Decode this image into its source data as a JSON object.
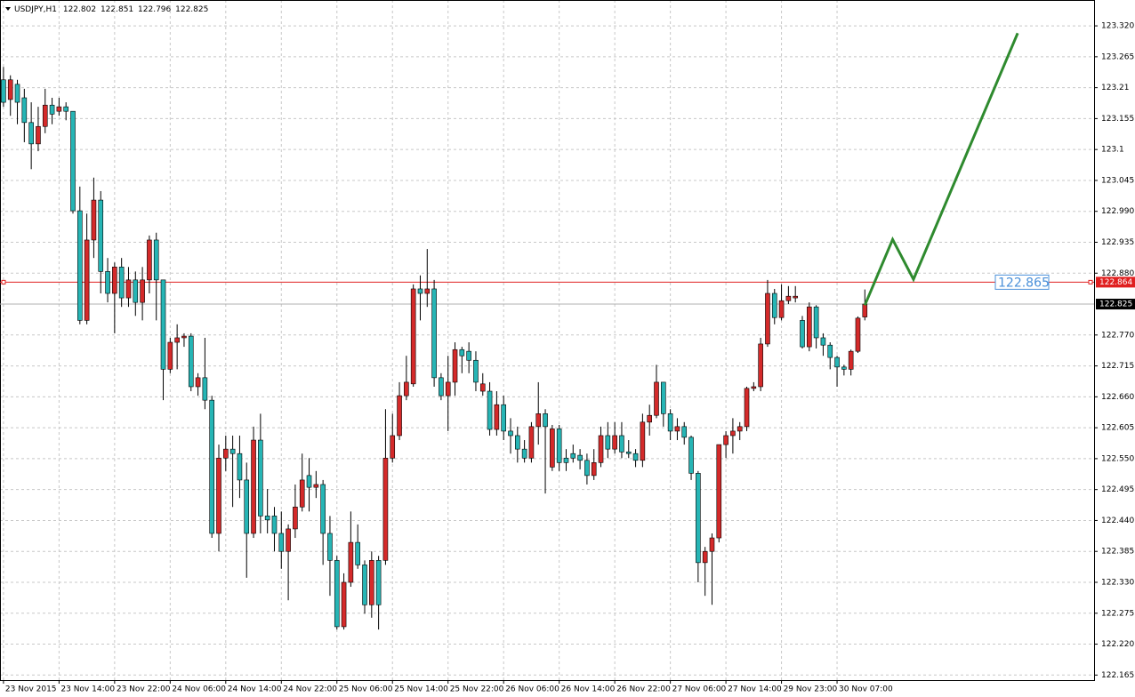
{
  "chart_data": {
    "type": "candlestick",
    "title": "USDJPY,H1",
    "up_color": "#d42a2a",
    "down_color": "#26b5b5",
    "grid": true,
    "categories": [
      "23 Nov 2015",
      null,
      null,
      null,
      null,
      null,
      null,
      null,
      "23 Nov 14:00",
      null,
      null,
      null,
      null,
      null,
      null,
      null,
      "23 Nov 22:00",
      null,
      null,
      null,
      null,
      null,
      null,
      null,
      "24 Nov 06:00",
      null,
      null,
      null,
      null,
      null,
      null,
      null,
      "24 Nov 14:00",
      null,
      null,
      null,
      null,
      null,
      null,
      null,
      "24 Nov 22:00",
      null,
      null,
      null,
      null,
      null,
      null,
      null,
      "25 Nov 06:00",
      null,
      null,
      null,
      null,
      null,
      null,
      null,
      "25 Nov 14:00",
      null,
      null,
      null,
      null,
      null,
      null,
      null,
      "25 Nov 22:00",
      null,
      null,
      null,
      null,
      null,
      null,
      null,
      "26 Nov 06:00",
      null,
      null,
      null,
      null,
      null,
      null,
      null,
      "26 Nov 14:00",
      null,
      null,
      null,
      null,
      null,
      null,
      null,
      "26 Nov 22:00",
      null,
      null,
      null,
      null,
      null,
      null,
      null,
      "27 Nov 06:00",
      null,
      null,
      null,
      null,
      null,
      null,
      null,
      "27 Nov 14:00",
      null,
      null,
      null,
      null,
      null,
      null,
      null,
      "29 Nov 23:00",
      null,
      null,
      null,
      null,
      null,
      null,
      null,
      "30 Nov 07:00",
      null,
      null,
      null,
      null
    ],
    "open": [
      123.224,
      123.189,
      123.216,
      123.192,
      123.148,
      123.11,
      123.141,
      123.179,
      123.168,
      123.176,
      123.168,
      122.991,
      122.796,
      122.939,
      123.01,
      122.883,
      122.844,
      122.891,
      122.836,
      122.868,
      122.828,
      122.868,
      122.939,
      122.868,
      122.709,
      122.757,
      122.765,
      122.768,
      122.678,
      122.694,
      122.654,
      122.417,
      122.551,
      122.567,
      122.559,
      122.512,
      122.417,
      122.583,
      122.448,
      122.448,
      122.417,
      122.385,
      122.425,
      122.464,
      122.52,
      122.499,
      122.504,
      122.417,
      122.369,
      122.251,
      122.33,
      122.401,
      122.361,
      122.29,
      122.369,
      122.369,
      122.551,
      122.591,
      122.662,
      122.683,
      122.852,
      122.844,
      122.852,
      122.694,
      122.662,
      122.686,
      122.744,
      122.741,
      122.725,
      122.67,
      122.67,
      122.602,
      122.646,
      122.599,
      122.591,
      122.567,
      122.551,
      122.607,
      122.63,
      122.535,
      122.603,
      122.551,
      122.559,
      122.556,
      122.547,
      122.52,
      122.543,
      122.591,
      122.567,
      122.591,
      122.562,
      122.559,
      122.547,
      122.615,
      122.627,
      122.686,
      122.63,
      122.599,
      122.607,
      122.588,
      122.524,
      122.365,
      122.385,
      122.409,
      122.575,
      122.591,
      122.599,
      122.607,
      122.675,
      122.678,
      122.754,
      122.844,
      122.801,
      122.831,
      122.836,
      122.796,
      122.749,
      122.82,
      122.765,
      122.752,
      122.73,
      122.713,
      122.709,
      122.741,
      122.802
    ],
    "high": [
      123.247,
      123.232,
      123.224,
      123.208,
      123.184,
      123.176,
      123.208,
      123.192,
      123.192,
      123.184,
      123.168,
      123.034,
      122.986,
      123.05,
      123.026,
      122.907,
      122.899,
      122.907,
      122.891,
      122.883,
      122.891,
      122.947,
      122.952,
      122.868,
      122.765,
      122.789,
      122.773,
      122.773,
      122.702,
      122.765,
      122.662,
      122.575,
      122.591,
      122.591,
      122.591,
      122.543,
      122.607,
      122.63,
      122.496,
      122.464,
      122.456,
      122.433,
      122.504,
      122.559,
      122.551,
      122.528,
      122.512,
      122.448,
      122.377,
      122.346,
      122.456,
      122.433,
      122.369,
      122.385,
      122.377,
      122.638,
      122.63,
      122.686,
      122.733,
      122.86,
      122.876,
      122.923,
      122.868,
      122.702,
      122.733,
      122.757,
      122.749,
      122.757,
      122.741,
      122.702,
      122.686,
      122.67,
      122.662,
      122.622,
      122.607,
      122.583,
      122.615,
      122.686,
      122.638,
      122.61,
      122.61,
      122.567,
      122.575,
      122.567,
      122.559,
      122.567,
      122.607,
      122.615,
      122.615,
      122.615,
      122.583,
      122.567,
      122.63,
      122.646,
      122.717,
      122.686,
      122.638,
      122.622,
      122.615,
      122.591,
      122.528,
      122.393,
      122.417,
      122.575,
      122.599,
      122.622,
      122.615,
      122.678,
      122.686,
      122.765,
      122.868,
      122.852,
      122.86,
      122.857,
      122.857,
      122.804,
      122.828,
      122.823,
      122.773,
      122.757,
      122.733,
      122.717,
      122.744,
      122.803,
      122.851
    ],
    "low": [
      123.176,
      123.16,
      123.145,
      123.113,
      123.065,
      123.097,
      123.129,
      123.145,
      123.16,
      123.152,
      122.986,
      122.789,
      122.789,
      122.907,
      122.844,
      122.828,
      122.773,
      122.82,
      122.82,
      122.804,
      122.796,
      122.844,
      122.796,
      122.654,
      122.702,
      122.709,
      122.749,
      122.67,
      122.662,
      122.638,
      122.409,
      122.385,
      122.528,
      122.464,
      122.48,
      122.338,
      122.409,
      122.417,
      122.417,
      122.385,
      122.354,
      122.298,
      122.409,
      122.456,
      122.456,
      122.48,
      122.361,
      122.306,
      122.246,
      122.246,
      122.322,
      122.354,
      122.274,
      122.267,
      122.246,
      122.361,
      122.543,
      122.583,
      122.654,
      122.678,
      122.796,
      122.82,
      122.678,
      122.654,
      122.599,
      122.662,
      122.702,
      122.702,
      122.67,
      122.662,
      122.591,
      122.591,
      122.583,
      122.559,
      122.543,
      122.543,
      122.543,
      122.575,
      122.488,
      122.528,
      122.528,
      122.528,
      122.543,
      122.531,
      122.504,
      122.512,
      122.535,
      122.551,
      122.559,
      122.551,
      122.551,
      122.535,
      122.535,
      122.591,
      122.622,
      122.607,
      122.583,
      122.583,
      122.575,
      122.512,
      122.33,
      122.306,
      122.29,
      122.401,
      122.551,
      122.559,
      122.583,
      122.599,
      122.67,
      122.67,
      122.749,
      122.789,
      122.796,
      122.825,
      122.828,
      122.746,
      122.741,
      122.746,
      122.733,
      122.709,
      122.678,
      122.698,
      122.698,
      122.738,
      122.796
    ],
    "close": [
      123.184,
      123.224,
      123.184,
      123.148,
      123.11,
      123.141,
      123.179,
      123.163,
      123.176,
      123.168,
      122.991,
      122.796,
      122.939,
      123.01,
      122.883,
      122.844,
      122.891,
      122.836,
      122.868,
      122.828,
      122.868,
      122.939,
      122.868,
      122.709,
      122.757,
      122.765,
      122.768,
      122.678,
      122.694,
      122.654,
      122.417,
      122.551,
      122.567,
      122.559,
      122.512,
      122.417,
      122.583,
      122.448,
      122.441,
      122.417,
      122.385,
      122.425,
      122.464,
      122.512,
      122.499,
      122.504,
      122.417,
      122.369,
      122.251,
      122.33,
      122.401,
      122.361,
      122.29,
      122.369,
      122.29,
      122.551,
      122.591,
      122.662,
      122.686,
      122.852,
      122.844,
      122.852,
      122.694,
      122.662,
      122.686,
      122.744,
      122.733,
      122.725,
      122.686,
      122.683,
      122.602,
      122.646,
      122.599,
      122.591,
      122.567,
      122.551,
      122.607,
      122.63,
      122.607,
      122.603,
      122.543,
      122.543,
      122.551,
      122.547,
      122.52,
      122.543,
      122.591,
      122.567,
      122.591,
      122.562,
      122.559,
      122.547,
      122.615,
      122.627,
      122.686,
      122.63,
      122.599,
      122.607,
      122.588,
      122.524,
      122.365,
      122.385,
      122.409,
      122.575,
      122.591,
      122.599,
      122.607,
      122.675,
      122.678,
      122.754,
      122.844,
      122.801,
      122.831,
      122.839,
      122.839,
      122.749,
      122.82,
      122.765,
      122.752,
      122.73,
      122.713,
      122.709,
      122.741,
      122.8,
      122.825
    ],
    "xlim": [
      -0.5,
      157
    ],
    "ylim": [
      122.156,
      123.366
    ],
    "yticks": [
      {
        "value": 123.32,
        "label": "123.320"
      },
      123.265,
      123.21,
      123.155,
      123.1,
      123.045,
      {
        "value": 122.99,
        "label": "122.990"
      },
      122.935,
      {
        "value": 122.88,
        "label": "122.880"
      },
      {
        "value": 122.77,
        "label": "122.770"
      },
      122.715,
      {
        "value": 122.66,
        "label": "122.660"
      },
      122.605,
      {
        "value": 122.55,
        "label": "122.550"
      },
      122.495,
      {
        "value": 122.44,
        "label": "122.440"
      },
      122.385,
      {
        "value": 122.33,
        "label": "122.330"
      },
      122.275,
      {
        "value": 122.22,
        "label": "122.220"
      },
      122.165
    ],
    "level": {
      "value": 122.864,
      "color": "#e02020"
    },
    "level_label": 122.865,
    "projection": {
      "x": [
        124,
        128,
        131,
        146
      ],
      "values": [
        122.823,
        122.94,
        122.869,
        123.307
      ],
      "color": "#2e8a2e"
    }
  }
}
